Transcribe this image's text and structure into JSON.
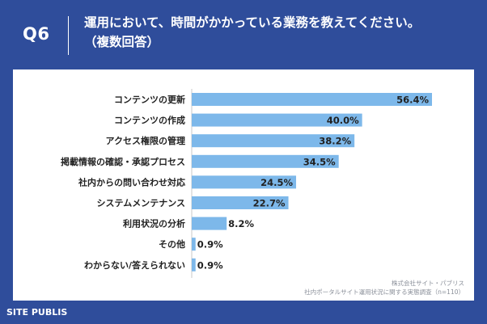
{
  "header": {
    "question_no": "Q6",
    "title_line1": "運用において、時間がかかっている業務を教えてください。",
    "title_line2": "（複数回答）"
  },
  "chart_data": {
    "type": "bar",
    "orientation": "horizontal",
    "categories": [
      "コンテンツの更新",
      "コンテンツの作成",
      "アクセス権限の管理",
      "掲載情報の確認・承認プロセス",
      "社内からの問い合わせ対応",
      "システムメンテナンス",
      "利用状況の分析",
      "その他",
      "わからない/答えられない"
    ],
    "values": [
      56.4,
      40.0,
      38.2,
      34.5,
      24.5,
      22.7,
      8.2,
      0.9,
      0.9
    ],
    "labels": [
      "56.4%",
      "40.0%",
      "38.2%",
      "34.5%",
      "24.5%",
      "22.7%",
      "8.2%",
      "0.9%",
      "0.9%"
    ],
    "xlim": [
      0,
      56.4
    ],
    "bar_color": "#7db8ea"
  },
  "source": {
    "line1": "株式会社サイト・パブリス",
    "line2": "社内ポータルサイト運用状況に関する実態調査（n=110）"
  },
  "brand": {
    "name": "SITE PUBLIS"
  },
  "colors": {
    "background": "#2f4d9b",
    "bar": "#7db8ea",
    "axis": "#c8c8c8",
    "text": "#222222"
  }
}
